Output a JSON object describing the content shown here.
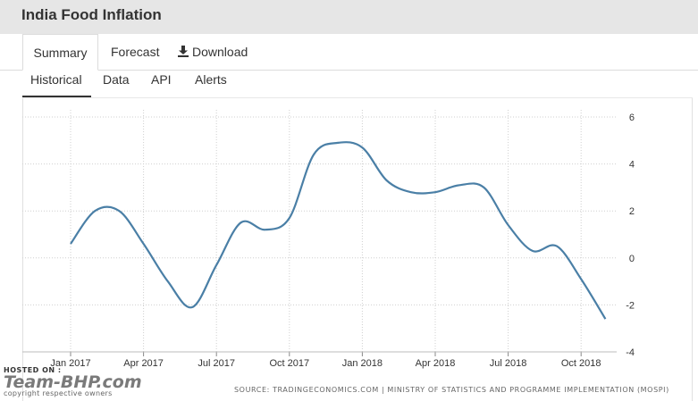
{
  "header": {
    "title": "India Food Inflation"
  },
  "tabs": [
    {
      "label": "Summary",
      "active": true
    },
    {
      "label": "Forecast",
      "active": false
    },
    {
      "label": "Download",
      "icon": "download-icon",
      "active": false
    }
  ],
  "subtabs": [
    {
      "label": "Historical",
      "active": true
    },
    {
      "label": "Data",
      "active": false
    },
    {
      "label": "API",
      "active": false
    },
    {
      "label": "Alerts",
      "active": false
    }
  ],
  "source_text": "SOURCE: TRADINGECONOMICS.COM | MINISTRY OF STATISTICS AND PROGRAMME IMPLEMENTATION (MOSPI)",
  "watermark": {
    "line1": "HOSTED ON :",
    "line2": "Team-BHP.com",
    "line3": "copyright respective owners"
  },
  "colors": {
    "line": "#4a7fa6",
    "header_bg": "#e6e6e6",
    "grid": "#cfcfcf"
  },
  "chart_data": {
    "type": "line",
    "title": "",
    "xlabel": "",
    "ylabel": "",
    "ylim": [
      -4,
      6
    ],
    "yticks": [
      6,
      4,
      2,
      0,
      -2,
      -4
    ],
    "y_axis_position": "right",
    "grid": true,
    "x_tick_labels": [
      {
        "label": "Jan 2017",
        "date": "2017-01"
      },
      {
        "label": "Apr 2017",
        "date": "2017-04"
      },
      {
        "label": "Jul 2017",
        "date": "2017-07"
      },
      {
        "label": "Oct 2017",
        "date": "2017-10"
      },
      {
        "label": "Jan 2018",
        "date": "2018-01"
      },
      {
        "label": "Apr 2018",
        "date": "2018-04"
      },
      {
        "label": "Jul 2018",
        "date": "2018-07"
      },
      {
        "label": "Oct 2018",
        "date": "2018-10"
      }
    ],
    "series": [
      {
        "x": [
          "2017-01",
          "2017-02",
          "2017-03",
          "2017-04",
          "2017-05",
          "2017-06",
          "2017-07",
          "2017-08",
          "2017-09",
          "2017-10",
          "2017-11",
          "2017-12",
          "2018-01",
          "2018-02",
          "2018-03",
          "2018-04",
          "2018-05",
          "2018-06",
          "2018-07",
          "2018-08",
          "2018-09",
          "2018-10",
          "2018-11"
        ],
        "y": [
          0.6,
          2.0,
          2.0,
          0.6,
          -1.0,
          -2.1,
          -0.3,
          1.5,
          1.2,
          1.7,
          4.4,
          4.9,
          4.7,
          3.3,
          2.8,
          2.8,
          3.1,
          3.0,
          1.4,
          0.3,
          0.5,
          -0.9,
          -2.6
        ]
      }
    ]
  }
}
